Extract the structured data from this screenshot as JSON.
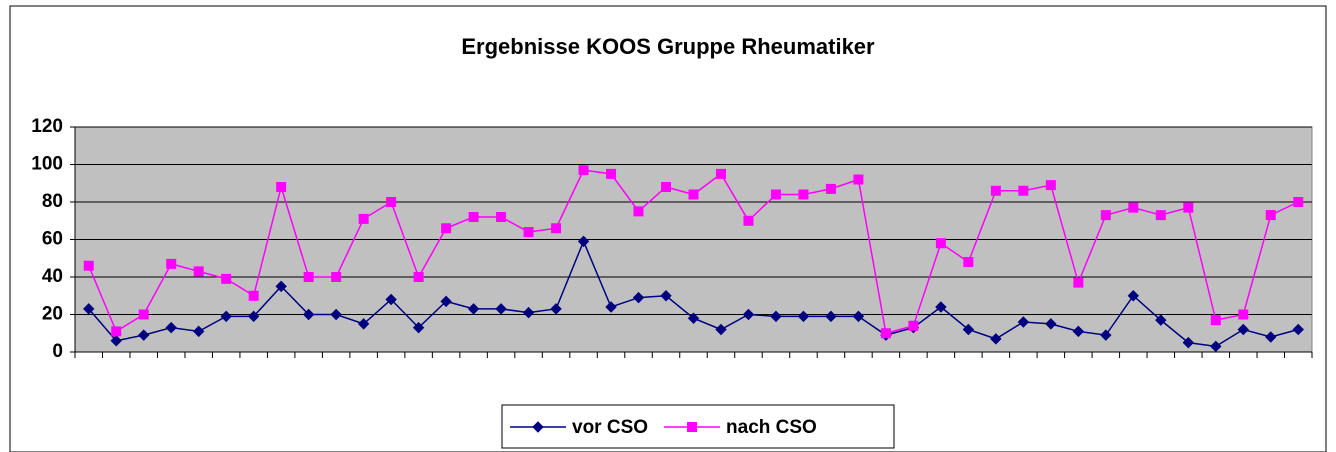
{
  "chart_data": {
    "type": "line",
    "title": "Ergebnisse KOOS Gruppe Rheumatiker",
    "categories": [
      null,
      null,
      null,
      null,
      null,
      null,
      null,
      null,
      null,
      null,
      null,
      null,
      null,
      null,
      null,
      null,
      null,
      null,
      null,
      null,
      null,
      null,
      null,
      null,
      null,
      null,
      null,
      null,
      null,
      null,
      null,
      null,
      null,
      null,
      null,
      null,
      null,
      null,
      null,
      null,
      null,
      null,
      null,
      null,
      null
    ],
    "series": [
      {
        "name": "vor CSO",
        "color": "#000080",
        "marker": "diamond",
        "values": [
          23,
          6,
          9,
          13,
          11,
          19,
          19,
          35,
          20,
          20,
          15,
          28,
          13,
          27,
          23,
          23,
          21,
          23,
          59,
          24,
          29,
          30,
          18,
          12,
          20,
          19,
          19,
          19,
          19,
          9,
          13,
          24,
          12,
          7,
          16,
          15,
          11,
          9,
          30,
          17,
          5,
          3,
          12,
          8,
          12
        ]
      },
      {
        "name": "nach CSO",
        "color": "#ff00ff",
        "marker": "square",
        "values": [
          46,
          11,
          20,
          47,
          43,
          39,
          30,
          88,
          40,
          40,
          71,
          80,
          40,
          66,
          72,
          72,
          64,
          66,
          97,
          95,
          75,
          88,
          84,
          95,
          70,
          84,
          84,
          87,
          92,
          10,
          14,
          58,
          48,
          86,
          86,
          89,
          37,
          73,
          77,
          73,
          77,
          17,
          20,
          73,
          80
        ]
      }
    ],
    "ylim": [
      0,
      120
    ],
    "yticks": [
      0,
      20,
      40,
      60,
      80,
      100,
      120
    ],
    "grid": true,
    "legend": "bottom"
  }
}
